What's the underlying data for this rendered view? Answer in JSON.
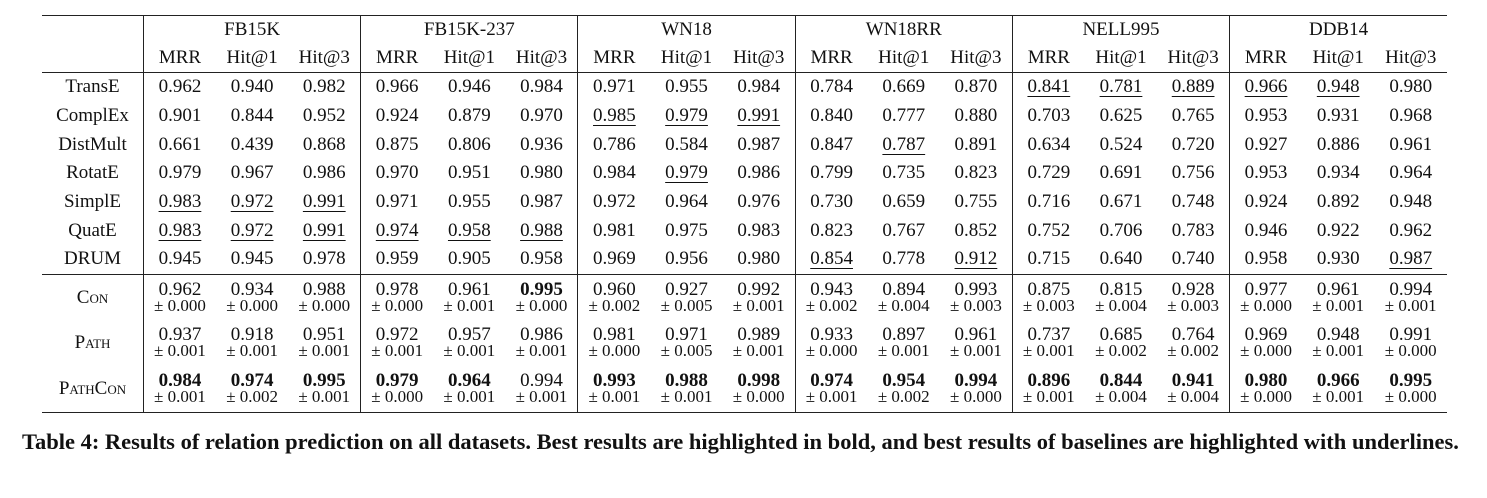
{
  "table": {
    "datasets": [
      "FB15K",
      "FB15K-237",
      "WN18",
      "WN18RR",
      "NELL995",
      "DDB14"
    ],
    "metrics": [
      "MRR",
      "Hit@1",
      "Hit@3"
    ],
    "baselines": [
      {
        "name": "TransE",
        "values": [
          "0.962",
          "0.940",
          "0.982",
          "0.966",
          "0.946",
          "0.984",
          "0.971",
          "0.955",
          "0.984",
          "0.784",
          "0.669",
          "0.870",
          "0.841",
          "0.781",
          "0.889",
          "0.966",
          "0.948",
          "0.980"
        ],
        "underlined": [
          12,
          13,
          14,
          15,
          16
        ]
      },
      {
        "name": "ComplEx",
        "values": [
          "0.901",
          "0.844",
          "0.952",
          "0.924",
          "0.879",
          "0.970",
          "0.985",
          "0.979",
          "0.991",
          "0.840",
          "0.777",
          "0.880",
          "0.703",
          "0.625",
          "0.765",
          "0.953",
          "0.931",
          "0.968"
        ],
        "underlined": [
          6,
          7,
          8
        ]
      },
      {
        "name": "DistMult",
        "values": [
          "0.661",
          "0.439",
          "0.868",
          "0.875",
          "0.806",
          "0.936",
          "0.786",
          "0.584",
          "0.987",
          "0.847",
          "0.787",
          "0.891",
          "0.634",
          "0.524",
          "0.720",
          "0.927",
          "0.886",
          "0.961"
        ],
        "underlined": [
          10
        ]
      },
      {
        "name": "RotatE",
        "values": [
          "0.979",
          "0.967",
          "0.986",
          "0.970",
          "0.951",
          "0.980",
          "0.984",
          "0.979",
          "0.986",
          "0.799",
          "0.735",
          "0.823",
          "0.729",
          "0.691",
          "0.756",
          "0.953",
          "0.934",
          "0.964"
        ],
        "underlined": [
          7
        ]
      },
      {
        "name": "SimplE",
        "values": [
          "0.983",
          "0.972",
          "0.991",
          "0.971",
          "0.955",
          "0.987",
          "0.972",
          "0.964",
          "0.976",
          "0.730",
          "0.659",
          "0.755",
          "0.716",
          "0.671",
          "0.748",
          "0.924",
          "0.892",
          "0.948"
        ],
        "underlined": [
          0,
          1,
          2
        ]
      },
      {
        "name": "QuatE",
        "values": [
          "0.983",
          "0.972",
          "0.991",
          "0.974",
          "0.958",
          "0.988",
          "0.981",
          "0.975",
          "0.983",
          "0.823",
          "0.767",
          "0.852",
          "0.752",
          "0.706",
          "0.783",
          "0.946",
          "0.922",
          "0.962"
        ],
        "underlined": [
          0,
          1,
          2,
          3,
          4,
          5
        ]
      },
      {
        "name": "DRUM",
        "values": [
          "0.945",
          "0.945",
          "0.978",
          "0.959",
          "0.905",
          "0.958",
          "0.969",
          "0.956",
          "0.980",
          "0.854",
          "0.778",
          "0.912",
          "0.715",
          "0.640",
          "0.740",
          "0.958",
          "0.930",
          "0.987"
        ],
        "underlined": [
          9,
          11,
          17
        ]
      }
    ],
    "methods": [
      {
        "name": "Con",
        "values": [
          "0.962",
          "0.934",
          "0.988",
          "0.978",
          "0.961",
          "0.995",
          "0.960",
          "0.927",
          "0.992",
          "0.943",
          "0.894",
          "0.993",
          "0.875",
          "0.815",
          "0.928",
          "0.977",
          "0.961",
          "0.994"
        ],
        "std": [
          "± 0.000",
          "± 0.000",
          "± 0.000",
          "± 0.000",
          "± 0.001",
          "± 0.000",
          "± 0.002",
          "± 0.005",
          "± 0.001",
          "± 0.002",
          "± 0.004",
          "± 0.003",
          "± 0.003",
          "± 0.004",
          "± 0.003",
          "± 0.000",
          "± 0.001",
          "± 0.001"
        ],
        "bold": [
          5
        ]
      },
      {
        "name": "Path",
        "values": [
          "0.937",
          "0.918",
          "0.951",
          "0.972",
          "0.957",
          "0.986",
          "0.981",
          "0.971",
          "0.989",
          "0.933",
          "0.897",
          "0.961",
          "0.737",
          "0.685",
          "0.764",
          "0.969",
          "0.948",
          "0.991"
        ],
        "std": [
          "± 0.001",
          "± 0.001",
          "± 0.001",
          "± 0.001",
          "± 0.001",
          "± 0.001",
          "± 0.000",
          "± 0.005",
          "± 0.001",
          "± 0.000",
          "± 0.001",
          "± 0.001",
          "± 0.001",
          "± 0.002",
          "± 0.002",
          "± 0.000",
          "± 0.001",
          "± 0.000"
        ],
        "bold": []
      },
      {
        "name": "PathCon",
        "values": [
          "0.984",
          "0.974",
          "0.995",
          "0.979",
          "0.964",
          "0.994",
          "0.993",
          "0.988",
          "0.998",
          "0.974",
          "0.954",
          "0.994",
          "0.896",
          "0.844",
          "0.941",
          "0.980",
          "0.966",
          "0.995"
        ],
        "std": [
          "± 0.001",
          "± 0.002",
          "± 0.001",
          "± 0.000",
          "± 0.001",
          "± 0.001",
          "± 0.001",
          "± 0.001",
          "± 0.000",
          "± 0.001",
          "± 0.002",
          "± 0.000",
          "± 0.001",
          "± 0.004",
          "± 0.004",
          "± 0.000",
          "± 0.001",
          "± 0.000"
        ],
        "bold": [
          0,
          1,
          2,
          3,
          4,
          6,
          7,
          8,
          9,
          10,
          11,
          12,
          13,
          14,
          15,
          16,
          17
        ]
      }
    ]
  },
  "caption": "Table 4: Results of relation prediction on all datasets. Best results are highlighted in bold, and best results of baselines are highlighted with underlines."
}
